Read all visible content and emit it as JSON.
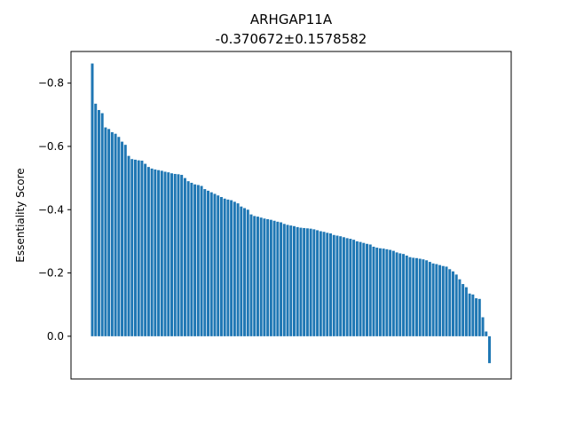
{
  "chart_data": {
    "type": "bar",
    "title": "ARHGAP11A",
    "subtitle": "-0.370672±0.1578582",
    "xlabel": "",
    "ylabel": "Essentiality Score",
    "ylim": [
      0.135,
      -0.9
    ],
    "y_inverted": true,
    "yticks": [
      0.0,
      -0.2,
      -0.4,
      -0.6,
      -0.8
    ],
    "ytick_labels": [
      "0.0",
      "−0.2",
      "−0.4",
      "−0.6",
      "−0.8"
    ],
    "grid": false,
    "bar_color": "#1f77b4",
    "values": [
      -0.862,
      -0.735,
      -0.715,
      -0.705,
      -0.66,
      -0.655,
      -0.645,
      -0.64,
      -0.63,
      -0.615,
      -0.605,
      -0.57,
      -0.56,
      -0.558,
      -0.556,
      -0.555,
      -0.545,
      -0.535,
      -0.53,
      -0.527,
      -0.525,
      -0.523,
      -0.52,
      -0.518,
      -0.515,
      -0.513,
      -0.512,
      -0.51,
      -0.5,
      -0.49,
      -0.485,
      -0.48,
      -0.478,
      -0.475,
      -0.465,
      -0.46,
      -0.455,
      -0.45,
      -0.445,
      -0.44,
      -0.435,
      -0.432,
      -0.43,
      -0.425,
      -0.42,
      -0.41,
      -0.405,
      -0.4,
      -0.385,
      -0.38,
      -0.378,
      -0.375,
      -0.372,
      -0.37,
      -0.368,
      -0.365,
      -0.362,
      -0.36,
      -0.355,
      -0.352,
      -0.35,
      -0.348,
      -0.345,
      -0.343,
      -0.342,
      -0.341,
      -0.34,
      -0.338,
      -0.335,
      -0.332,
      -0.33,
      -0.327,
      -0.325,
      -0.32,
      -0.318,
      -0.316,
      -0.313,
      -0.31,
      -0.308,
      -0.305,
      -0.3,
      -0.298,
      -0.295,
      -0.292,
      -0.29,
      -0.283,
      -0.28,
      -0.278,
      -0.277,
      -0.275,
      -0.273,
      -0.27,
      -0.265,
      -0.262,
      -0.26,
      -0.255,
      -0.25,
      -0.248,
      -0.247,
      -0.245,
      -0.243,
      -0.24,
      -0.235,
      -0.23,
      -0.228,
      -0.225,
      -0.222,
      -0.22,
      -0.212,
      -0.205,
      -0.195,
      -0.18,
      -0.165,
      -0.155,
      -0.135,
      -0.132,
      -0.12,
      -0.118,
      -0.06,
      -0.015,
      0.085
    ]
  }
}
